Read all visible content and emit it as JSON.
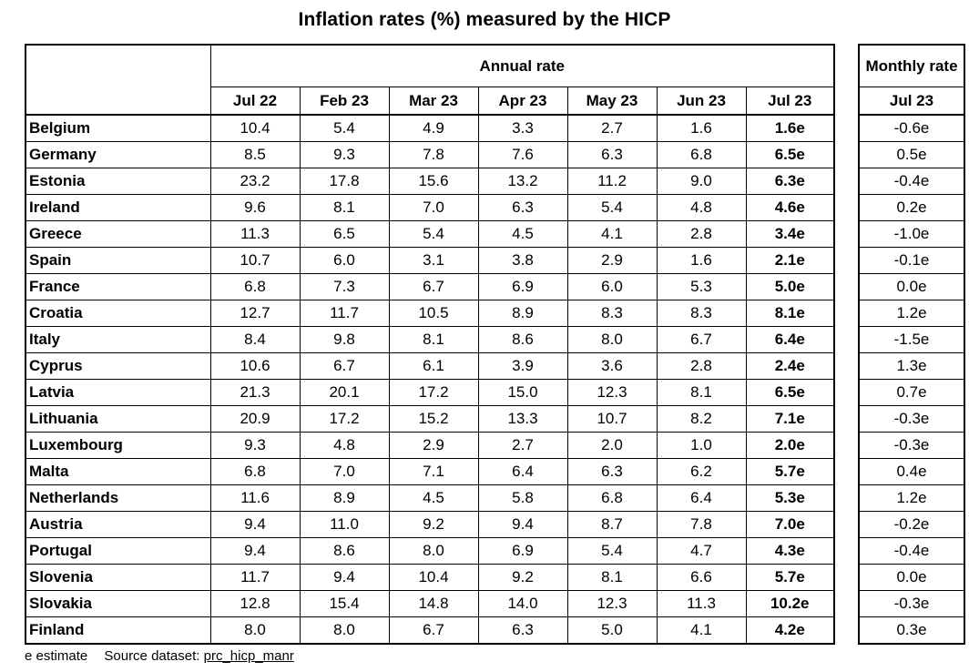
{
  "title": "Inflation rates (%) measured by the HICP",
  "annual_header": "Annual rate",
  "monthly_header": "Monthly rate",
  "months": [
    "Jul 22",
    "Feb 23",
    "Mar 23",
    "Apr 23",
    "May 23",
    "Jun 23",
    "Jul 23"
  ],
  "monthly_month": "Jul 23",
  "rows": [
    {
      "country": "Belgium",
      "values": [
        "10.4",
        "5.4",
        "4.9",
        "3.3",
        "2.7",
        "1.6",
        "1.6e"
      ],
      "monthly": "-0.6e"
    },
    {
      "country": "Germany",
      "values": [
        "8.5",
        "9.3",
        "7.8",
        "7.6",
        "6.3",
        "6.8",
        "6.5e"
      ],
      "monthly": "0.5e"
    },
    {
      "country": "Estonia",
      "values": [
        "23.2",
        "17.8",
        "15.6",
        "13.2",
        "11.2",
        "9.0",
        "6.3e"
      ],
      "monthly": "-0.4e"
    },
    {
      "country": "Ireland",
      "values": [
        "9.6",
        "8.1",
        "7.0",
        "6.3",
        "5.4",
        "4.8",
        "4.6e"
      ],
      "monthly": "0.2e"
    },
    {
      "country": "Greece",
      "values": [
        "11.3",
        "6.5",
        "5.4",
        "4.5",
        "4.1",
        "2.8",
        "3.4e"
      ],
      "monthly": "-1.0e"
    },
    {
      "country": "Spain",
      "values": [
        "10.7",
        "6.0",
        "3.1",
        "3.8",
        "2.9",
        "1.6",
        "2.1e"
      ],
      "monthly": "-0.1e"
    },
    {
      "country": "France",
      "values": [
        "6.8",
        "7.3",
        "6.7",
        "6.9",
        "6.0",
        "5.3",
        "5.0e"
      ],
      "monthly": "0.0e"
    },
    {
      "country": "Croatia",
      "values": [
        "12.7",
        "11.7",
        "10.5",
        "8.9",
        "8.3",
        "8.3",
        "8.1e"
      ],
      "monthly": "1.2e"
    },
    {
      "country": "Italy",
      "values": [
        "8.4",
        "9.8",
        "8.1",
        "8.6",
        "8.0",
        "6.7",
        "6.4e"
      ],
      "monthly": "-1.5e"
    },
    {
      "country": "Cyprus",
      "values": [
        "10.6",
        "6.7",
        "6.1",
        "3.9",
        "3.6",
        "2.8",
        "2.4e"
      ],
      "monthly": "1.3e"
    },
    {
      "country": "Latvia",
      "values": [
        "21.3",
        "20.1",
        "17.2",
        "15.0",
        "12.3",
        "8.1",
        "6.5e"
      ],
      "monthly": "0.7e"
    },
    {
      "country": "Lithuania",
      "values": [
        "20.9",
        "17.2",
        "15.2",
        "13.3",
        "10.7",
        "8.2",
        "7.1e"
      ],
      "monthly": "-0.3e"
    },
    {
      "country": "Luxembourg",
      "values": [
        "9.3",
        "4.8",
        "2.9",
        "2.7",
        "2.0",
        "1.0",
        "2.0e"
      ],
      "monthly": "-0.3e"
    },
    {
      "country": "Malta",
      "values": [
        "6.8",
        "7.0",
        "7.1",
        "6.4",
        "6.3",
        "6.2",
        "5.7e"
      ],
      "monthly": "0.4e"
    },
    {
      "country": "Netherlands",
      "values": [
        "11.6",
        "8.9",
        "4.5",
        "5.8",
        "6.8",
        "6.4",
        "5.3e"
      ],
      "monthly": "1.2e"
    },
    {
      "country": "Austria",
      "values": [
        "9.4",
        "11.0",
        "9.2",
        "9.4",
        "8.7",
        "7.8",
        "7.0e"
      ],
      "monthly": "-0.2e"
    },
    {
      "country": "Portugal",
      "values": [
        "9.4",
        "8.6",
        "8.0",
        "6.9",
        "5.4",
        "4.7",
        "4.3e"
      ],
      "monthly": "-0.4e"
    },
    {
      "country": "Slovenia",
      "values": [
        "11.7",
        "9.4",
        "10.4",
        "9.2",
        "8.1",
        "6.6",
        "5.7e"
      ],
      "monthly": "0.0e"
    },
    {
      "country": "Slovakia",
      "values": [
        "12.8",
        "15.4",
        "14.8",
        "14.0",
        "12.3",
        "11.3",
        "10.2e"
      ],
      "monthly": "-0.3e"
    },
    {
      "country": "Finland",
      "values": [
        "8.0",
        "8.0",
        "6.7",
        "6.3",
        "5.0",
        "4.1",
        "4.2e"
      ],
      "monthly": "0.3e"
    }
  ],
  "footer": {
    "estimate_note": "e estimate",
    "source_label": "Source dataset:",
    "source_dataset": "prc_hicp_manr"
  }
}
